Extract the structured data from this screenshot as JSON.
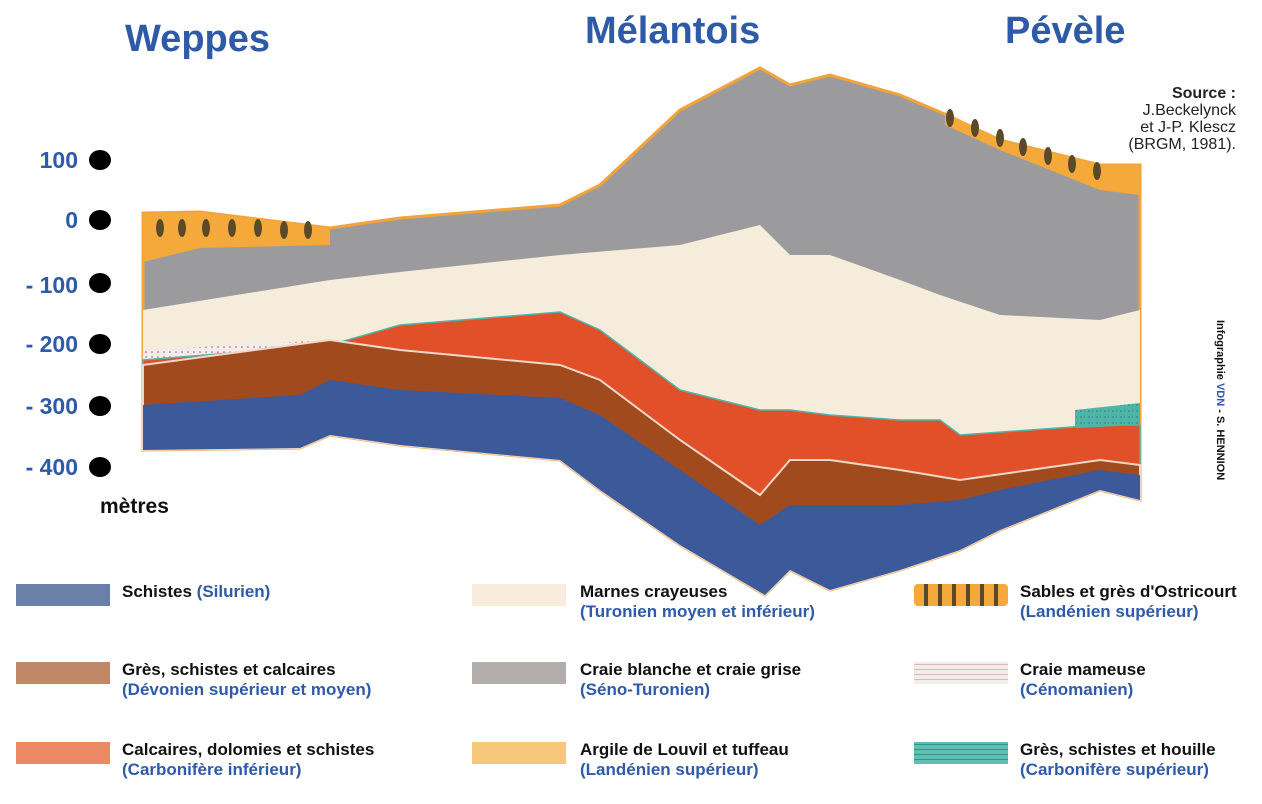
{
  "header": {
    "regions": [
      "Weppes",
      "Mélantois",
      "Pévèle"
    ]
  },
  "depth_scale": {
    "ticks": [
      "100",
      "0",
      "- 100",
      "- 200",
      "- 300",
      "- 400"
    ],
    "unit": "mètres"
  },
  "source": {
    "label": "Source :",
    "lines": [
      "J.Beckelynck",
      "et J-P. Klescz",
      "(BRGM, 1981)."
    ]
  },
  "credit": {
    "prefix": "Infographie",
    "brand": "VDN",
    "author": "- S. HENNION"
  },
  "legend": [
    {
      "name": "Schistes",
      "period": "(Silurien)"
    },
    {
      "name": "Marnes crayeuses",
      "period": "(Turonien moyen et inférieur)"
    },
    {
      "name": "Sables et grès d'Ostricourt",
      "period": "(Landénien supérieur)"
    },
    {
      "name": "Grès, schistes et calcaires",
      "period": "(Dévonien supérieur et moyen)"
    },
    {
      "name": "Craie blanche et craie grise",
      "period": "(Séno-Turonien)"
    },
    {
      "name": "Craie mameuse",
      "period": "(Cénomanien)"
    },
    {
      "name": "Calcaires, dolomies et schistes",
      "period": "(Carbonifère inférieur)"
    },
    {
      "name": "Argile de Louvil et tuffeau",
      "period": "(Landénien supérieur)"
    },
    {
      "name": "Grès, schistes et houille",
      "period": "(Carbonifère supérieur)"
    }
  ]
}
